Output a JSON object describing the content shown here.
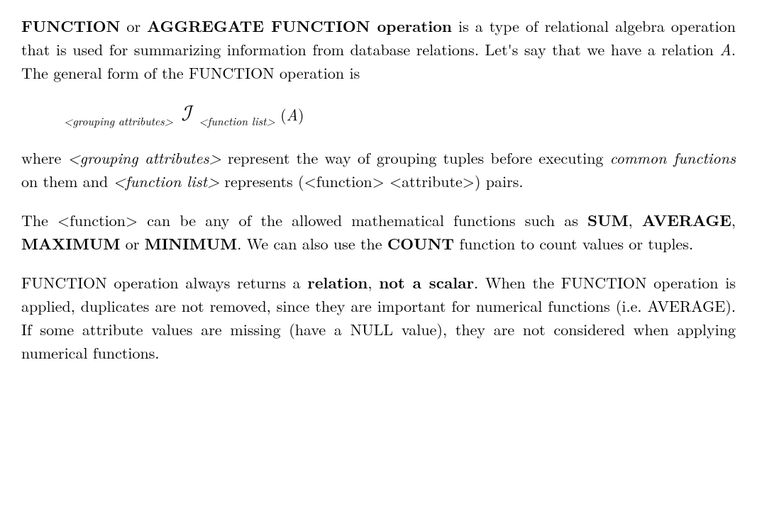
{
  "p1": {
    "t1": "FUNCTION",
    "t2": " or ",
    "t3": "AGGREGATE FUNCTION operation",
    "t4": " is a type of relational algebra operation that is used for summarizing information from database relations. Let's say that we have a relation ",
    "t5": "A",
    "t6": ". The general form of the FUNCTION operation is"
  },
  "formula": {
    "sub1": "<grouping attributes>",
    "op": "ℐ",
    "sub2": "<function list>",
    "rel": "(A)"
  },
  "p2": {
    "t1": "where ",
    "t2": "<grouping attributes>",
    "t3": " represent the way of grouping tuples before executing ",
    "t4": "common functions",
    "t5": " on them and ",
    "t6": "<function list>",
    "t7": " represents (<function> <attribute>) pairs."
  },
  "p3": {
    "t1": "The <function> can be any of the allowed mathematical functions such as ",
    "t2": "SUM",
    "t3": ", ",
    "t4": "AVERAGE",
    "t5": ", ",
    "t6": "MAXIMUM",
    "t7": " or ",
    "t8": "MINIMUM",
    "t9": ". We can also use the ",
    "t10": "COUNT",
    "t11": " function to count values or tuples."
  },
  "p4": {
    "t1": "FUNCTION operation always returns a ",
    "t2": "relation",
    "t3": ", ",
    "t4": "not a scalar",
    "t5": ". When the FUNCTION operation is applied, duplicates are not removed, since they are important for numerical functions (i.e. AVERAGE). If some attribute values are missing (have a NULL value), they are not considered when applying numerical functions."
  }
}
